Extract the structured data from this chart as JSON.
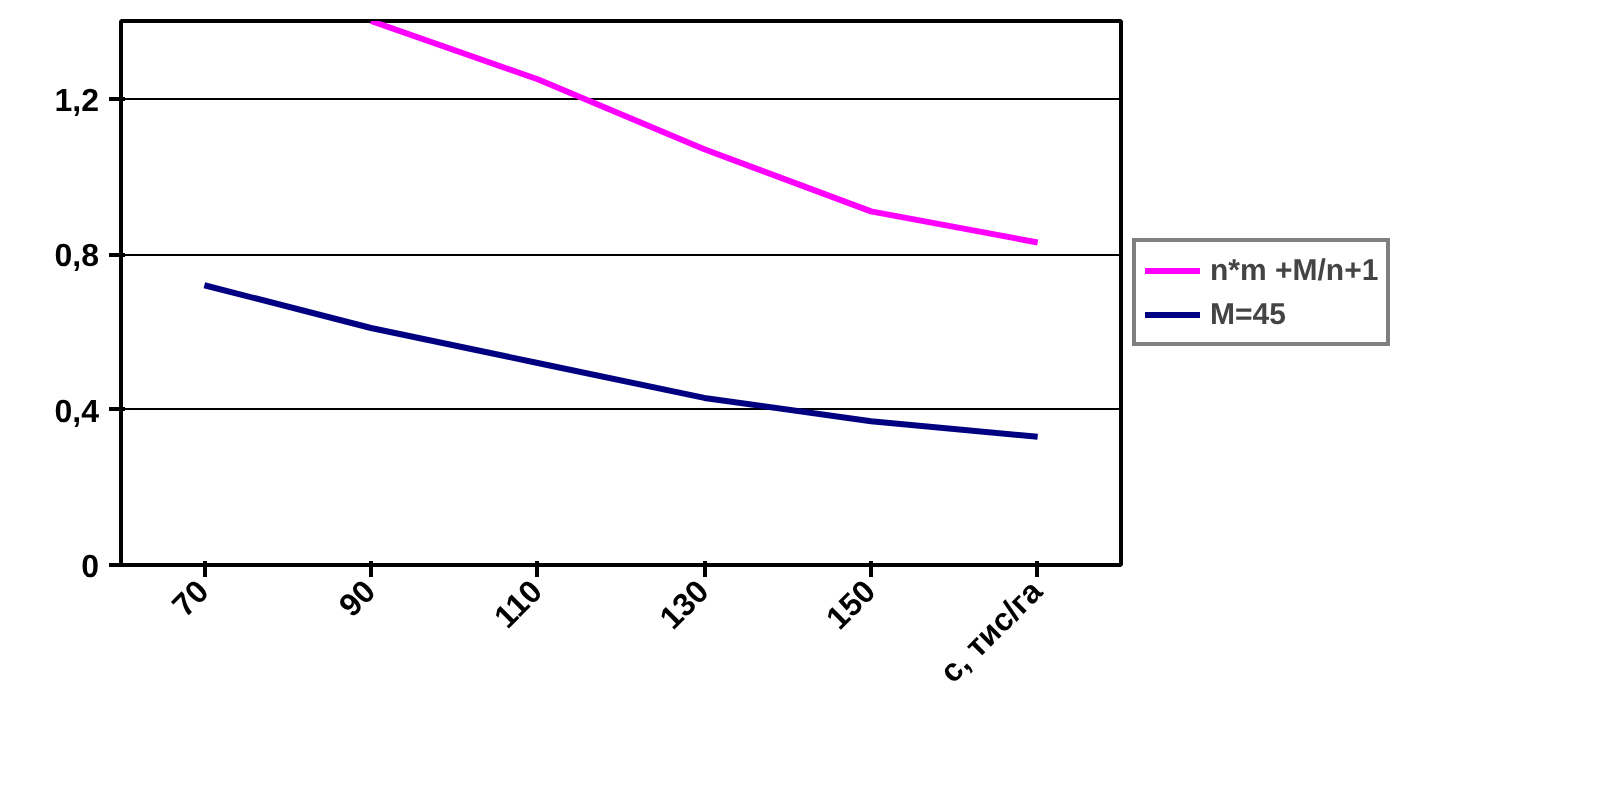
{
  "chart_data": {
    "type": "line",
    "categories": [
      "70",
      "90",
      "110",
      "130",
      "150",
      "с, тис/га"
    ],
    "series": [
      {
        "name": "n*m +M/n+1",
        "color": "#ff00ff",
        "values": [
          null,
          1.4,
          1.25,
          1.07,
          0.91,
          0.83
        ]
      },
      {
        "name": "M=45",
        "color": "#000080",
        "values": [
          0.72,
          0.61,
          0.52,
          0.43,
          0.37,
          0.33
        ]
      }
    ],
    "ylim": [
      0,
      1.4
    ],
    "yticks": [
      0,
      {
        "value": 0.4,
        "label": "0,4"
      },
      {
        "value": 0.8,
        "label": "0,8"
      },
      {
        "value": 1.2,
        "label": "1,2"
      }
    ],
    "grid": "y",
    "legend": "right",
    "marker": "none",
    "line_style": "solid"
  }
}
